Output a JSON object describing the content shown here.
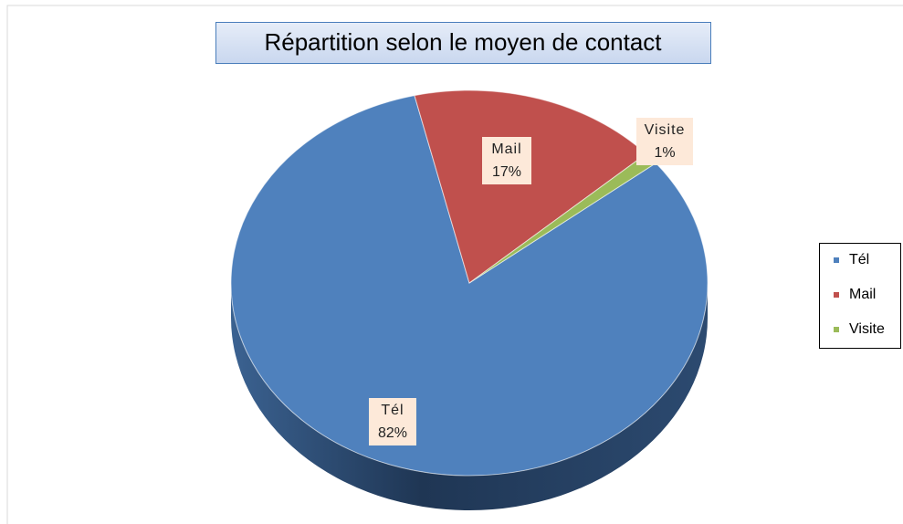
{
  "chart_data": {
    "type": "pie",
    "title": "Répartition selon le moyen de contact",
    "categories": [
      "Tél",
      "Mail",
      "Visite"
    ],
    "values": [
      82,
      17,
      1
    ],
    "value_labels": [
      "82%",
      "17%",
      "1%"
    ],
    "colors": [
      "#4f81bd",
      "#c0504d",
      "#9bbb59"
    ],
    "legend": "right"
  }
}
